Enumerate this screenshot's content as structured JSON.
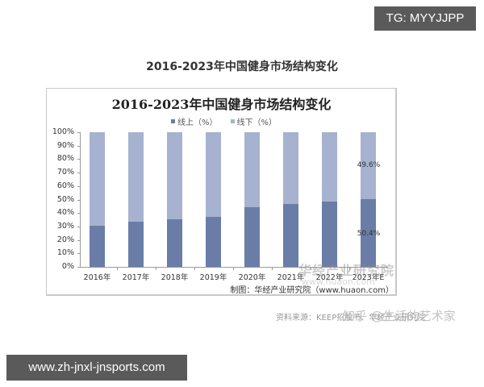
{
  "badges": {
    "top_right": "TG: MYYJJPP",
    "bottom_left": "www.zh-jnxl-jnsports.com"
  },
  "outer_title": "2016-2023年中国健身市场结构变化",
  "chart": {
    "title": "2016-2023年中国健身市场结构变化",
    "legend": [
      "线上（%）",
      "线下（%）"
    ],
    "credit": "制图：华经产业研究院（www.huaon.com）",
    "watermark": "华经产业研究院",
    "watermark_url": "www.huaon.com",
    "y_ticks": [
      "0%",
      "10%",
      "20%",
      "30%",
      "40%",
      "50%",
      "60%",
      "70%",
      "80%",
      "90%",
      "100%"
    ],
    "label_2023_offline": "49.6%",
    "label_2023_online": "50.4%"
  },
  "source_line": "资料来源：KEEP招股书、华经产业研究院",
  "zhihu_watermark": "知乎 @生活的艺术家",
  "colors": {
    "online": "#6a7da7",
    "offline": "#a6b2cf"
  },
  "chart_data": {
    "type": "bar",
    "stacked": true,
    "percent": true,
    "title": "2016-2023年中国健身市场结构变化",
    "categories": [
      "2016年",
      "2017年",
      "2018年",
      "2019年",
      "2020年",
      "2021年",
      "2022年",
      "2023年E"
    ],
    "series": [
      {
        "name": "线上（%）",
        "color": "#6a7da7",
        "values": [
          30.5,
          33.5,
          35.3,
          37.2,
          44.4,
          46.5,
          48.3,
          50.4
        ]
      },
      {
        "name": "线下（%）",
        "color": "#a6b2cf",
        "values": [
          69.5,
          66.5,
          64.7,
          62.8,
          55.6,
          53.5,
          51.7,
          49.6
        ]
      }
    ],
    "annotations": [
      {
        "category": "2023年E",
        "series": "线下（%）",
        "text": "49.6%"
      },
      {
        "category": "2023年E",
        "series": "线上（%）",
        "text": "50.4%"
      }
    ],
    "xlabel": "",
    "ylabel": "",
    "ylim": [
      0,
      100
    ],
    "y_ticks": [
      "0%",
      "10%",
      "20%",
      "30%",
      "40%",
      "50%",
      "60%",
      "70%",
      "80%",
      "90%",
      "100%"
    ],
    "grid": false,
    "legend_position": "top"
  }
}
